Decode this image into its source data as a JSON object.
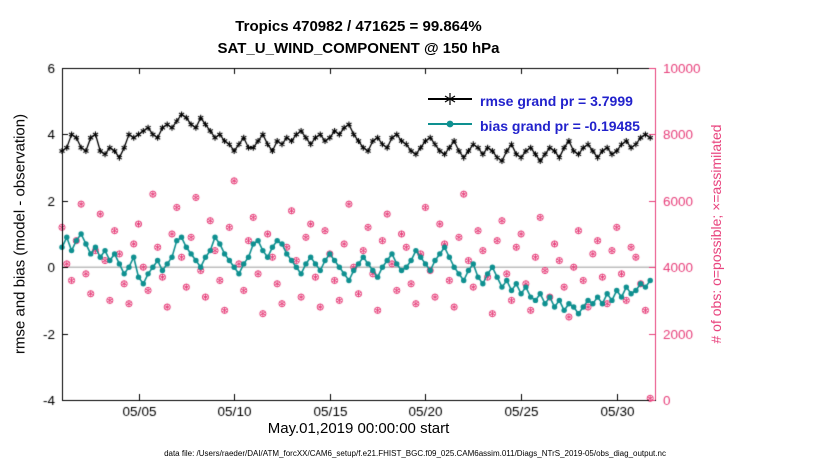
{
  "figure": {
    "caption": "data file: /Users/raeder/DAI/ATM_forcXX/CAM6_setup/f.e21.FHIST_BGC.f09_025.CAM6assim.011/Diags_NTrS_2019-05/obs_diag_output.nc"
  },
  "chart_data": {
    "type": "line",
    "title": "Tropics 470982 / 471625 = 99.864%",
    "subtitle": "SAT_U_WIND_COMPONENT @ 150 hPa",
    "xlabel": "May.01,2019 00:00:00 start",
    "ylabel": "rmse and bias (model - observation)",
    "ylabel_right": "# of obs: o=possible; ×=assimilated",
    "x_axis": {
      "min": 1,
      "max": 32,
      "tick_days": [
        5,
        10,
        15,
        20,
        25,
        30
      ],
      "tick_labels": [
        "05/05",
        "05/10",
        "05/15",
        "05/20",
        "05/25",
        "05/30"
      ]
    },
    "y_left": {
      "min": -4,
      "max": 6,
      "ticks": [
        -4,
        -2,
        0,
        2,
        4,
        6
      ],
      "tick_labels": [
        "-4",
        "-2",
        "0",
        "2",
        "4",
        "6"
      ]
    },
    "y_right": {
      "min": 0,
      "max": 10000,
      "ticks": [
        0,
        2000,
        4000,
        6000,
        8000,
        10000
      ],
      "tick_labels": [
        "0",
        "2000",
        "4000",
        "6000",
        "8000",
        "10000"
      ]
    },
    "zero_line": 0,
    "x_samples": {
      "start": 1,
      "step": 0.25,
      "count": 124
    },
    "colors": {
      "rmse": "#000000",
      "bias": "#0e9090",
      "obs": "#e8417c",
      "zero_line": "#bdbdbd",
      "legend_text": "#2222cc",
      "right_axis": "#e8417c"
    },
    "series": [
      {
        "name": "rmse",
        "legend": "rmse grand pr = 3.7999",
        "color": "#000000",
        "axis": "left",
        "marker": "asterisk",
        "values": [
          3.5,
          3.6,
          4.0,
          3.9,
          3.6,
          3.5,
          3.9,
          4.0,
          3.5,
          3.4,
          3.6,
          3.5,
          3.3,
          3.6,
          4.0,
          3.9,
          4.0,
          4.1,
          4.2,
          4.0,
          3.9,
          4.2,
          4.3,
          4.2,
          4.4,
          4.6,
          4.5,
          4.3,
          4.2,
          4.5,
          4.3,
          4.1,
          3.9,
          4.0,
          3.8,
          3.7,
          3.5,
          3.7,
          3.9,
          3.6,
          3.6,
          3.8,
          4.0,
          3.7,
          3.5,
          3.8,
          3.7,
          3.9,
          3.8,
          4.0,
          4.1,
          3.9,
          3.7,
          3.9,
          4.0,
          3.8,
          3.9,
          4.1,
          4.0,
          4.2,
          4.3,
          4.0,
          3.8,
          3.6,
          3.5,
          3.8,
          3.9,
          3.7,
          3.6,
          3.9,
          4.0,
          3.8,
          3.7,
          3.5,
          3.4,
          3.6,
          3.8,
          3.9,
          3.7,
          3.5,
          3.4,
          3.6,
          3.8,
          3.5,
          3.3,
          3.5,
          3.7,
          3.6,
          3.4,
          3.6,
          3.5,
          3.3,
          3.2,
          3.5,
          3.7,
          3.4,
          3.3,
          3.5,
          3.6,
          3.4,
          3.2,
          3.4,
          3.6,
          3.5,
          3.3,
          3.6,
          3.8,
          3.5,
          3.4,
          3.6,
          3.7,
          3.5,
          3.3,
          3.5,
          3.6,
          3.4,
          3.5,
          3.7,
          3.8,
          3.6,
          3.7,
          3.9,
          4.0,
          3.9
        ]
      },
      {
        "name": "bias",
        "legend": "bias grand pr = -0.19485",
        "color": "#0e9090",
        "axis": "left",
        "marker": "dot",
        "values": [
          0.6,
          0.9,
          0.5,
          0.8,
          1.0,
          0.7,
          0.4,
          0.6,
          0.3,
          0.5,
          0.2,
          0.4,
          0.1,
          -0.2,
          0.0,
          0.3,
          -0.3,
          -0.5,
          -0.2,
          0.0,
          0.2,
          -0.1,
          0.1,
          0.3,
          0.8,
          0.9,
          0.6,
          0.4,
          0.2,
          0.0,
          0.3,
          0.5,
          0.9,
          0.7,
          0.4,
          0.2,
          0.0,
          -0.2,
          0.1,
          0.3,
          0.7,
          0.8,
          0.5,
          0.3,
          0.6,
          0.8,
          0.7,
          0.4,
          0.2,
          0.0,
          -0.2,
          0.1,
          0.3,
          0.1,
          -0.1,
          0.2,
          0.4,
          0.2,
          0.0,
          -0.2,
          -0.4,
          -0.1,
          0.1,
          0.3,
          0.1,
          -0.1,
          -0.3,
          0.0,
          0.2,
          0.4,
          0.1,
          -0.1,
          0.0,
          0.2,
          0.5,
          0.3,
          0.1,
          -0.1,
          0.2,
          0.4,
          0.6,
          0.3,
          0.0,
          -0.2,
          -0.4,
          -0.1,
          0.1,
          -0.3,
          -0.5,
          -0.2,
          0.0,
          -0.3,
          -0.6,
          -0.4,
          -0.7,
          -0.5,
          -0.8,
          -0.6,
          -0.9,
          -1.0,
          -0.8,
          -1.1,
          -0.9,
          -1.2,
          -1.0,
          -1.3,
          -1.1,
          -1.2,
          -1.4,
          -1.2,
          -1.0,
          -1.1,
          -0.9,
          -1.1,
          -0.8,
          -1.0,
          -0.7,
          -0.9,
          -0.6,
          -0.8,
          -0.7,
          -0.5,
          -0.6,
          -0.4
        ]
      },
      {
        "name": "obs_possible_and_assimilated",
        "legend": null,
        "color": "#e8417c",
        "axis": "right",
        "marker": "circle-asterisk",
        "values": [
          5200,
          4100,
          3600,
          4800,
          5900,
          3800,
          3200,
          4500,
          5600,
          4200,
          3000,
          5100,
          4400,
          3500,
          2900,
          4700,
          5300,
          4000,
          3300,
          6200,
          4600,
          3700,
          2800,
          5000,
          5800,
          4300,
          3400,
          4900,
          6100,
          3900,
          3100,
          5400,
          4500,
          3600,
          2700,
          5200,
          6600,
          4100,
          3300,
          4800,
          5500,
          3800,
          2600,
          5000,
          4300,
          3500,
          2900,
          4600,
          5700,
          4200,
          3100,
          4900,
          5300,
          3700,
          2800,
          5100,
          4400,
          3600,
          3000,
          4700,
          5900,
          4000,
          3200,
          4500,
          5200,
          3800,
          2700,
          4800,
          5600,
          4100,
          3300,
          5000,
          4600,
          3500,
          2900,
          4400,
          5800,
          3900,
          3100,
          5300,
          4700,
          3600,
          2800,
          4900,
          6200,
          4200,
          3400,
          5100,
          4500,
          3700,
          2600,
          4800,
          5400,
          3800,
          3000,
          4600,
          5000,
          3500,
          2700,
          4300,
          5500,
          3900,
          3100,
          4700,
          4200,
          3400,
          2500,
          4000,
          5100,
          3600,
          2800,
          4400,
          4800,
          3700,
          2900,
          4500,
          5200,
          3800,
          3000,
          4600,
          4300,
          3500,
          2700,
          50
        ]
      }
    ]
  }
}
